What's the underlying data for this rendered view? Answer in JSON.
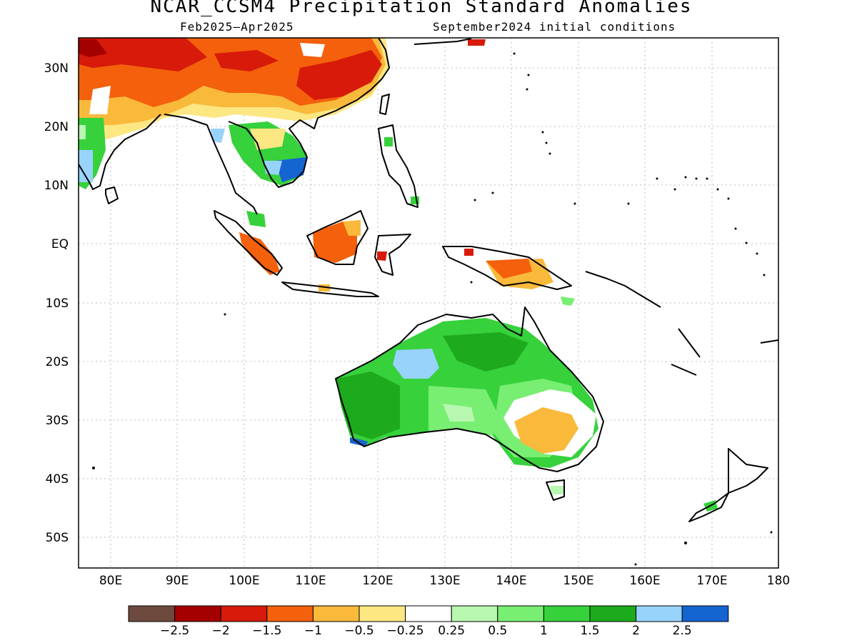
{
  "title": "NCAR_CCSM4 Precipitation Standard Anomalies",
  "period": "Feb2025–Apr2025",
  "init": "September2024 initial conditions",
  "lat_labels": [
    "30N",
    "20N",
    "10N",
    "EQ",
    "10S",
    "20S",
    "30S",
    "40S",
    "50S"
  ],
  "lon_labels": [
    "80E",
    "90E",
    "100E",
    "110E",
    "120E",
    "130E",
    "140E",
    "150E",
    "160E",
    "170E",
    "180"
  ],
  "colorbar": {
    "colors": [
      "#6e4a3e",
      "#a50000",
      "#d71a0a",
      "#f4600c",
      "#f9b93b",
      "#fde783",
      "#ffffff",
      "#b8f7b0",
      "#78ee72",
      "#37d13c",
      "#1eaa1d",
      "#98d3fb",
      "#1464d2"
    ],
    "labels": [
      "−2.5",
      "−2",
      "−1.5",
      "−1",
      "−0.5",
      "−0.25",
      "0.25",
      "0.5",
      "1",
      "1.5",
      "2",
      "2.5"
    ]
  }
}
